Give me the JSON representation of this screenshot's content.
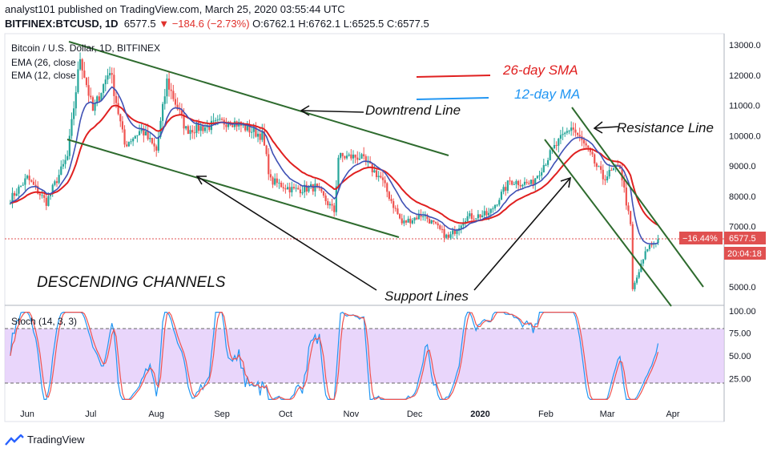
{
  "header": {
    "published": "analyst101 published on TradingView.com, March 25, 2020 03:55:44 UTC",
    "symbol": "BITFINEX:BTCUSD, 1D",
    "last": "6577.5",
    "change": "−184.6 (−2.73%)",
    "ohlc": {
      "o": "O:6762.1",
      "h": "H:6762.1",
      "l": "L:6525.5",
      "c": "C:6577.5"
    }
  },
  "legend": {
    "pair": "Bitcoin / U.S. Dollar, 1D, BITFINEX",
    "ema26": "EMA (26, close",
    "ema12": "EMA (12, close"
  },
  "annotations": {
    "sma26": "26-day SMA",
    "ma12": "12-day MA",
    "downtrend": "Downtrend Line",
    "resistance": "Resistance Line",
    "support": "Support Lines",
    "channels": "DESCENDING CHANNELS"
  },
  "badges": {
    "pct": "−16.44%",
    "price": "6577.5",
    "countdown": "20:04:18"
  },
  "stoch_label": "Stoch (14, 3, 3)",
  "footer": {
    "brand": "TradingView"
  },
  "colors": {
    "up": "#26a69a",
    "down": "#ef5350",
    "ema26": "#e02020",
    "ema12": "#3f51b5",
    "trend": "#2e6b2e",
    "stoch_k": "#2196f3",
    "stoch_d": "#ef5350",
    "stoch_band": "#e1c8fa"
  },
  "chart_data": [
    {
      "type": "candlestick",
      "title": "Bitcoin / U.S. Dollar, 1D, BITFINEX",
      "x_ticks": [
        "Jun",
        "Jul",
        "Aug",
        "Sep",
        "Oct",
        "Nov",
        "Dec",
        "2020",
        "Feb",
        "Mar",
        "Apr"
      ],
      "y_ticks": [
        "13000.0",
        "12000.0",
        "11000.0",
        "10000.0",
        "9000.0",
        "8000.0",
        "7000.0",
        "5000.0"
      ],
      "ylim": [
        4200,
        13300
      ],
      "price_path": {
        "x": [
          "2019-05-24",
          "2019-06-01",
          "2019-06-10",
          "2019-06-20",
          "2019-06-26",
          "2019-07-02",
          "2019-07-10",
          "2019-07-17",
          "2019-07-25",
          "2019-08-01",
          "2019-08-06",
          "2019-08-15",
          "2019-08-25",
          "2019-09-05",
          "2019-09-20",
          "2019-09-24",
          "2019-10-05",
          "2019-10-15",
          "2019-10-24",
          "2019-10-26",
          "2019-11-05",
          "2019-11-15",
          "2019-11-25",
          "2019-12-05",
          "2019-12-17",
          "2019-12-25",
          "2020-01-05",
          "2020-01-15",
          "2020-01-25",
          "2020-02-05",
          "2020-02-13",
          "2020-02-20",
          "2020-02-28",
          "2020-03-07",
          "2020-03-12",
          "2020-03-13",
          "2020-03-20",
          "2020-03-25"
        ],
        "close": [
          7900,
          8600,
          7800,
          9300,
          12600,
          10800,
          12200,
          9700,
          10200,
          9500,
          11800,
          10200,
          10300,
          10500,
          10000,
          8500,
          8200,
          8300,
          7500,
          9300,
          9300,
          8600,
          7100,
          7400,
          6600,
          7300,
          7400,
          8500,
          8400,
          9600,
          10300,
          9600,
          8600,
          9000,
          7000,
          4900,
          6300,
          6577.5
        ]
      },
      "ema26_label": "EMA (26, close",
      "ema12_label": "EMA (12, close",
      "last_price": 6577.5,
      "last_change_pct": "−16.44%"
    },
    {
      "type": "line",
      "title": "Stoch (14, 3, 3)",
      "y_ticks": [
        "100.00",
        "75.00",
        "50.00",
        "25.00"
      ],
      "ylim": [
        0,
        100
      ],
      "bands": [
        20,
        80
      ]
    }
  ]
}
